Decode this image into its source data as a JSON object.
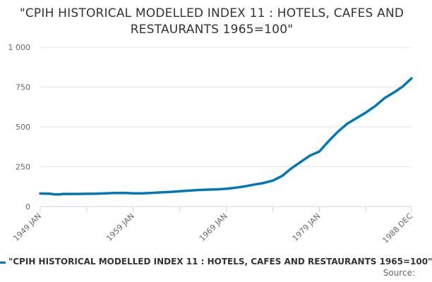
{
  "chart_data": {
    "type": "line",
    "title": "\"CPIH HISTORICAL MODELLED INDEX 11 : HOTELS, CAFES AND RESTAURANTS 1965=100\"",
    "xlabel": "",
    "ylabel": "",
    "ylim": [
      0,
      1000
    ],
    "yticks": [
      0,
      250,
      500,
      750,
      1000
    ],
    "ytick_labels": [
      "0",
      "250",
      "500",
      "750",
      "1 000"
    ],
    "xlim": [
      1949.0,
      1988.917
    ],
    "xticks": [
      1949.0,
      1959.0,
      1969.0,
      1979.0,
      1988.917
    ],
    "xtick_labels": [
      "1949 JAN",
      "1959 JAN",
      "1969 JAN",
      "1979 JAN",
      "1988 DEC"
    ],
    "grid": true,
    "legend_position": "bottom",
    "series": [
      {
        "name": "\"CPIH HISTORICAL MODELLED INDEX 11 : HOTELS, CAFES AND RESTAURANTS 1965=100\"",
        "color": "#0077b6",
        "x": [
          1949.0,
          1950.0,
          1950.5,
          1951.0,
          1951.5,
          1952.0,
          1953.0,
          1954.0,
          1955.0,
          1956.0,
          1957.0,
          1958.0,
          1959.0,
          1960.0,
          1961.0,
          1962.0,
          1963.0,
          1964.0,
          1965.0,
          1966.0,
          1967.0,
          1968.0,
          1969.0,
          1970.0,
          1971.0,
          1972.0,
          1973.0,
          1974.0,
          1975.0,
          1976.0,
          1977.0,
          1978.0,
          1979.0,
          1980.0,
          1981.0,
          1982.0,
          1983.0,
          1984.0,
          1985.0,
          1986.0,
          1987.0,
          1988.0,
          1988.917
        ],
        "values": [
          82,
          81,
          77,
          76,
          79,
          79,
          79,
          80,
          81,
          83,
          85,
          86,
          83,
          83,
          86,
          89,
          92,
          96,
          100,
          104,
          106,
          108,
          112,
          118,
          127,
          138,
          148,
          163,
          192,
          240,
          280,
          320,
          345,
          410,
          470,
          520,
          555,
          590,
          630,
          680,
          715,
          755,
          805
        ]
      }
    ]
  },
  "legend": {
    "label": "\"CPIH HISTORICAL MODELLED INDEX 11 : HOTELS, CAFES AND RESTAURANTS 1965=100\""
  },
  "footer": {
    "source_label": "Source:"
  }
}
